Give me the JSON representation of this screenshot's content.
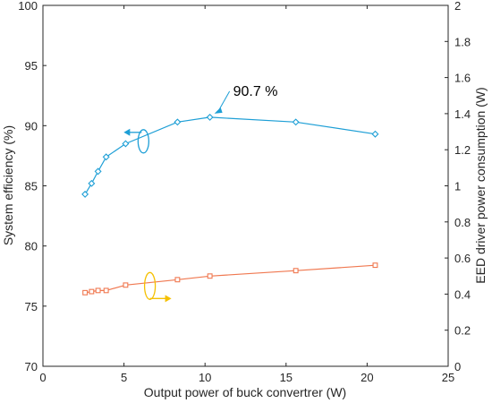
{
  "chart_data": {
    "type": "line",
    "xlabel": "Output power of buck convertrer (W)",
    "ylabel_left": "System efficiency (%)",
    "ylabel_right": "EED driver power consumption (W)",
    "xlim": [
      0,
      25
    ],
    "ylim_left": [
      70,
      100
    ],
    "ylim_right": [
      0,
      2
    ],
    "x_ticks": [
      "0",
      "5",
      "10",
      "15",
      "20",
      "25"
    ],
    "y_left_ticks": [
      "70",
      "75",
      "80",
      "85",
      "90",
      "95",
      "100"
    ],
    "y_right_ticks": [
      "0",
      "0.2",
      "0.4",
      "0.6",
      "0.8",
      "1",
      "1.2",
      "1.4",
      "1.6",
      "1.8",
      "2"
    ],
    "grid": false,
    "series": [
      {
        "axis": "left",
        "marker": "diamond",
        "color": "#1e9fd6",
        "x": [
          2.6,
          3.0,
          3.4,
          3.9,
          5.1,
          8.3,
          10.3,
          15.6,
          20.5
        ],
        "y": [
          84.3,
          85.2,
          86.2,
          87.4,
          88.5,
          90.3,
          90.7,
          90.3,
          89.3
        ]
      },
      {
        "axis": "right",
        "marker": "square",
        "color": "#f07850",
        "x": [
          2.6,
          3.0,
          3.4,
          3.9,
          5.1,
          8.3,
          10.3,
          15.6,
          20.5
        ],
        "y": [
          0.408,
          0.414,
          0.42,
          0.42,
          0.45,
          0.48,
          0.5,
          0.53,
          0.56
        ]
      }
    ],
    "annotation": {
      "text": "90.7 %",
      "x": 10.3,
      "y": 90.7,
      "axis": "left"
    },
    "indicators": [
      {
        "color": "#1e9fd6",
        "direction": "left"
      },
      {
        "color": "#f5c000",
        "direction": "right"
      }
    ]
  }
}
